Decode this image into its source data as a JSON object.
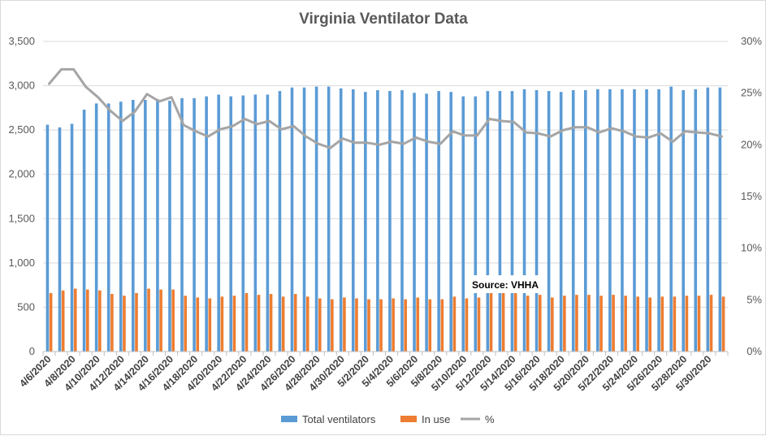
{
  "chart_data": {
    "type": "bar",
    "title": "Virginia Ventilator Data",
    "xlabel": "",
    "ylabel": "",
    "y2label": "",
    "ylim": [
      0,
      3500
    ],
    "y2lim": [
      0,
      0.3
    ],
    "yticks": [
      "0",
      "500",
      "1,000",
      "1,500",
      "2,000",
      "2,500",
      "3,000",
      "3,500"
    ],
    "y2ticks": [
      "0%",
      "5%",
      "10%",
      "15%",
      "20%",
      "25%",
      "30%"
    ],
    "grid": true,
    "legend_position": "bottom",
    "annotation": "Source: VHHA",
    "categories": [
      "4/6/2020",
      "4/7/2020",
      "4/8/2020",
      "4/9/2020",
      "4/10/2020",
      "4/11/2020",
      "4/12/2020",
      "4/13/2020",
      "4/14/2020",
      "4/15/2020",
      "4/16/2020",
      "4/17/2020",
      "4/18/2020",
      "4/19/2020",
      "4/20/2020",
      "4/21/2020",
      "4/22/2020",
      "4/23/2020",
      "4/24/2020",
      "4/25/2020",
      "4/26/2020",
      "4/27/2020",
      "4/28/2020",
      "4/29/2020",
      "4/30/2020",
      "5/1/2020",
      "5/2/2020",
      "5/3/2020",
      "5/4/2020",
      "5/5/2020",
      "5/6/2020",
      "5/7/2020",
      "5/8/2020",
      "5/9/2020",
      "5/10/2020",
      "5/11/2020",
      "5/12/2020",
      "5/13/2020",
      "5/14/2020",
      "5/15/2020",
      "5/16/2020",
      "5/17/2020",
      "5/18/2020",
      "5/19/2020",
      "5/20/2020",
      "5/21/2020",
      "5/22/2020",
      "5/23/2020",
      "5/24/2020",
      "5/25/2020",
      "5/26/2020",
      "5/27/2020",
      "5/28/2020",
      "5/29/2020",
      "5/30/2020",
      "5/31/2020"
    ],
    "x_tick_labels": [
      "4/6/2020",
      "4/8/2020",
      "4/10/2020",
      "4/12/2020",
      "4/14/2020",
      "4/16/2020",
      "4/18/2020",
      "4/20/2020",
      "4/22/2020",
      "4/24/2020",
      "4/26/2020",
      "4/28/2020",
      "4/30/2020",
      "5/2/2020",
      "5/4/2020",
      "5/6/2020",
      "5/8/2020",
      "5/10/2020",
      "5/12/2020",
      "5/14/2020",
      "5/16/2020",
      "5/18/2020",
      "5/20/2020",
      "5/22/2020",
      "5/24/2020",
      "5/26/2020",
      "5/28/2020",
      "5/30/2020"
    ],
    "series": [
      {
        "name": "Total ventilators",
        "type": "bar",
        "axis": "left",
        "color": "#5b9bd5",
        "values": [
          2560,
          2530,
          2570,
          2730,
          2800,
          2800,
          2820,
          2840,
          2840,
          2850,
          2830,
          2860,
          2860,
          2880,
          2900,
          2880,
          2890,
          2900,
          2900,
          2940,
          2980,
          2980,
          2990,
          2990,
          2970,
          2960,
          2930,
          2950,
          2940,
          2950,
          2920,
          2910,
          2940,
          2930,
          2880,
          2880,
          2940,
          2940,
          2940,
          2960,
          2950,
          2940,
          2930,
          2950,
          2950,
          2960,
          2960,
          2960,
          2960,
          2960,
          2960,
          2990,
          2950,
          2960,
          2980,
          2980
        ]
      },
      {
        "name": "In use",
        "type": "bar",
        "axis": "left",
        "color": "#ed7d31",
        "values": [
          660,
          690,
          710,
          700,
          690,
          650,
          630,
          660,
          710,
          700,
          700,
          630,
          610,
          600,
          620,
          630,
          660,
          640,
          650,
          620,
          650,
          620,
          600,
          590,
          610,
          600,
          590,
          590,
          600,
          590,
          610,
          590,
          590,
          620,
          600,
          610,
          670,
          660,
          660,
          630,
          640,
          610,
          630,
          640,
          640,
          630,
          640,
          630,
          620,
          610,
          620,
          620,
          630,
          630,
          640,
          620
        ]
      },
      {
        "name": "%",
        "type": "line",
        "axis": "right",
        "color": "#a5a5a5",
        "values": [
          0.259,
          0.273,
          0.273,
          0.256,
          0.246,
          0.233,
          0.223,
          0.232,
          0.249,
          0.242,
          0.246,
          0.219,
          0.213,
          0.208,
          0.215,
          0.218,
          0.225,
          0.22,
          0.223,
          0.215,
          0.218,
          0.208,
          0.201,
          0.197,
          0.206,
          0.202,
          0.202,
          0.2,
          0.203,
          0.201,
          0.207,
          0.203,
          0.201,
          0.213,
          0.209,
          0.209,
          0.225,
          0.223,
          0.222,
          0.212,
          0.211,
          0.208,
          0.214,
          0.217,
          0.217,
          0.212,
          0.216,
          0.213,
          0.208,
          0.207,
          0.211,
          0.203,
          0.213,
          0.212,
          0.211,
          0.208
        ]
      }
    ]
  }
}
